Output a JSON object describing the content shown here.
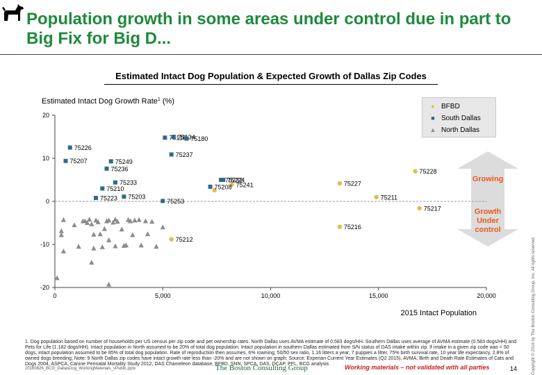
{
  "slide": {
    "title": "Population growth in some areas under control due in part to Big Fix for Big D...",
    "chart_title": "Estimated Intact Dog Population & Expected Growth of Dallas Zip Codes",
    "growing_label": "Growing",
    "under_control_label": "Growth\nUnder\ncontrol",
    "footnote": "1. Dog population based on number of households per US census per zip code and pet ownership rates. North Dallas uses AVMA estimate of 0.583 dogs/HH. Southern Dallas uses average of AVMA estimate (0.583 dogs/HH) and Pets for Life (1.182 dogs/HH). Intact population in North assumed to be 20% of total dog population. Intact population in southern Dallas estimated from S/N status of DAS intake within zip. If intake in a given zip code was < 50 dogs, intact population assumed to be 85% of total dog population. Rate of reproduction then assumes, 6% roaming; 50/50 sex ratio, 1.16 litters a year, 7 puppies a litter, 75% birth survival rate, 10 year life expectancy, 2.8% of owned dogs breeding; Note: 9 North Dallas zip codes have intact growth rate less than -20% and are not shown on graph; Source: Experian Current Year Estimates (Q2 2015), AVMA, Birth and Death Rate Estimates of Cats and Dogs 2004, ASPCA, Canine Perinatal Mortality Study 2012, DAS Chameleon database, BFBD, SNN, SPCA, DAS, DCAP, PFL, BCG analysis",
    "filename": "20160826_BCG_DallasDog_WorkingMaterials_vPublic.pptx",
    "company": "The Boston Consulting Group",
    "warning": "Working materials – not validated with all parties",
    "page_number": "14",
    "copyright": "Copyright © 2016 by The Boston Consulting Group, Inc. All rights reserved."
  },
  "colors": {
    "title": "#1e8a3c",
    "bfbd": "#e2bd4f",
    "south_dallas": "#2f6b86",
    "north_dallas": "#8c8c8c",
    "accent": "#e8581e",
    "arrow": "#dcdcdc"
  },
  "chart_data": {
    "type": "scatter",
    "xlabel": "2015 Intact Population",
    "ylabel": "Estimated Intact Dog Growth Rate",
    "ylabel_sup": "1",
    "ylabel_unit": "(%)",
    "xlim": [
      0,
      20000
    ],
    "ylim": [
      -20,
      20
    ],
    "xticks": [
      0,
      5000,
      10000,
      15000,
      20000
    ],
    "xtick_labels": [
      "0",
      "5,000",
      "10,000",
      "15,000",
      "20,000"
    ],
    "yticks": [
      -20,
      -10,
      0,
      10,
      20
    ],
    "ytick_labels": [
      "-20",
      "-10",
      "0",
      "10",
      "20"
    ],
    "reference_line": 0,
    "legend_position": "top-right",
    "series": [
      {
        "name": "BFBD",
        "marker": "circle",
        "points": [
          {
            "x": 5400,
            "y": -8.8,
            "label": "75212"
          },
          {
            "x": 7400,
            "y": 2.6,
            "label": ""
          },
          {
            "x": 8200,
            "y": 3.9,
            "label": "75241"
          },
          {
            "x": 13200,
            "y": 4.2,
            "label": "75227"
          },
          {
            "x": 13200,
            "y": -5.9,
            "label": "75216"
          },
          {
            "x": 14900,
            "y": 1.0,
            "label": "75211"
          },
          {
            "x": 16700,
            "y": 7.0,
            "label": "75228"
          },
          {
            "x": 16900,
            "y": -1.6,
            "label": "75217"
          }
        ]
      },
      {
        "name": "South Dallas",
        "marker": "square",
        "points": [
          {
            "x": 500,
            "y": 9.4,
            "label": "75207"
          },
          {
            "x": 700,
            "y": 12.5,
            "label": "75226"
          },
          {
            "x": 2600,
            "y": 9.3,
            "label": "75249"
          },
          {
            "x": 2400,
            "y": 7.6,
            "label": "75236"
          },
          {
            "x": 2800,
            "y": 4.4,
            "label": "75233"
          },
          {
            "x": 2200,
            "y": 3.0,
            "label": "75210"
          },
          {
            "x": 3200,
            "y": 1.1,
            "label": "75203"
          },
          {
            "x": 1900,
            "y": 0.8,
            "label": "75223"
          },
          {
            "x": 5000,
            "y": 0.1,
            "label": "75253"
          },
          {
            "x": 5100,
            "y": 14.8,
            "label": "75116"
          },
          {
            "x": 5500,
            "y": 15.0,
            "label": "75134"
          },
          {
            "x": 6100,
            "y": 14.6,
            "label": "75180"
          },
          {
            "x": 5400,
            "y": 10.9,
            "label": "75237"
          },
          {
            "x": 7200,
            "y": 3.4,
            "label": "75208"
          },
          {
            "x": 7700,
            "y": 5.0,
            "label": "75232"
          },
          {
            "x": 7800,
            "y": 5.0,
            "label": "75224"
          }
        ]
      },
      {
        "name": "North Dallas",
        "marker": "triangle",
        "points": [
          {
            "x": 100,
            "y": -17.8
          },
          {
            "x": 300,
            "y": -6.9
          },
          {
            "x": 300,
            "y": -7.8
          },
          {
            "x": 400,
            "y": -4.3
          },
          {
            "x": 400,
            "y": -11.6
          },
          {
            "x": 900,
            "y": -5.5
          },
          {
            "x": 1100,
            "y": -10.5
          },
          {
            "x": 1300,
            "y": -4.6
          },
          {
            "x": 1400,
            "y": -4.6
          },
          {
            "x": 1500,
            "y": -5.0
          },
          {
            "x": 1600,
            "y": -4.2
          },
          {
            "x": 1700,
            "y": -5.3
          },
          {
            "x": 1700,
            "y": -14.2
          },
          {
            "x": 1800,
            "y": -7.7
          },
          {
            "x": 1800,
            "y": -10.9
          },
          {
            "x": 1900,
            "y": -4.4
          },
          {
            "x": 2000,
            "y": -4.8
          },
          {
            "x": 2100,
            "y": -7.6
          },
          {
            "x": 2200,
            "y": -10.6
          },
          {
            "x": 2300,
            "y": -6.4
          },
          {
            "x": 2400,
            "y": -4.6
          },
          {
            "x": 2500,
            "y": -9.0
          },
          {
            "x": 2700,
            "y": -4.9
          },
          {
            "x": 2800,
            "y": -10.4
          },
          {
            "x": 2500,
            "y": -4.4
          },
          {
            "x": 2800,
            "y": -4.2
          },
          {
            "x": 2900,
            "y": -4.7
          },
          {
            "x": 3100,
            "y": -6.5
          },
          {
            "x": 3200,
            "y": -10.3
          },
          {
            "x": 3300,
            "y": -10.2
          },
          {
            "x": 3400,
            "y": -4.3
          },
          {
            "x": 3500,
            "y": -4.6
          },
          {
            "x": 3600,
            "y": -7.8
          },
          {
            "x": 3700,
            "y": -4.4
          },
          {
            "x": 3900,
            "y": -4.3
          },
          {
            "x": 4000,
            "y": -10.2
          },
          {
            "x": 4200,
            "y": -4.6
          },
          {
            "x": 4300,
            "y": -7.6
          },
          {
            "x": 4500,
            "y": -4.7
          },
          {
            "x": 4700,
            "y": -10.5
          },
          {
            "x": 5000,
            "y": -6.0
          },
          {
            "x": 2500,
            "y": -19.3
          }
        ]
      }
    ]
  }
}
